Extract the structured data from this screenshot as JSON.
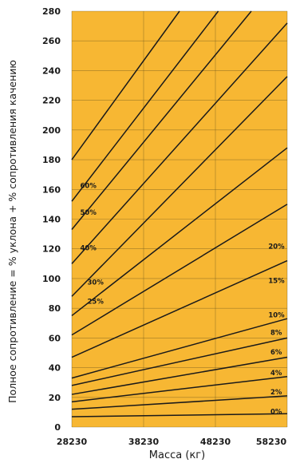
{
  "chart_data": {
    "type": "line",
    "title": "",
    "xlabel": "Масса (кг)",
    "ylabel": "Полное сопротивление = % уклона + % сопротивления качению",
    "x_ticks": [
      "28230",
      "38230",
      "48230",
      "58230"
    ],
    "y_ticks": [
      "0",
      "20",
      "40",
      "60",
      "80",
      "100",
      "120",
      "140",
      "160",
      "180",
      "200",
      "220",
      "240",
      "260",
      "280"
    ],
    "xlim": [
      28230,
      58230
    ],
    "ylim": [
      0,
      280
    ],
    "grid": true,
    "colors": {
      "plot_background": "#F7B733",
      "line": "#1a1a1a",
      "grid": "#5a4a1a"
    },
    "series": [
      {
        "name": "0%",
        "values": [
          {
            "x": 28230,
            "y": 7
          },
          {
            "x": 58230,
            "y": 9
          }
        ]
      },
      {
        "name": "2%",
        "values": [
          {
            "x": 28230,
            "y": 12
          },
          {
            "x": 58230,
            "y": 21
          }
        ]
      },
      {
        "name": "4%",
        "values": [
          {
            "x": 28230,
            "y": 17
          },
          {
            "x": 58230,
            "y": 34
          }
        ]
      },
      {
        "name": "6%",
        "values": [
          {
            "x": 28230,
            "y": 22
          },
          {
            "x": 58230,
            "y": 47
          }
        ]
      },
      {
        "name": "8%",
        "values": [
          {
            "x": 28230,
            "y": 28
          },
          {
            "x": 58230,
            "y": 60
          }
        ]
      },
      {
        "name": "10%",
        "values": [
          {
            "x": 28230,
            "y": 33
          },
          {
            "x": 58230,
            "y": 73
          }
        ]
      },
      {
        "name": "",
        "values": [
          {
            "x": 28230,
            "y": 47
          },
          {
            "x": 58230,
            "y": 112
          }
        ]
      },
      {
        "name": "15%",
        "values": [
          {
            "x": 28230,
            "y": 62
          },
          {
            "x": 58230,
            "y": 150
          }
        ]
      },
      {
        "name": "25%",
        "values": [
          {
            "x": 28230,
            "y": 75
          },
          {
            "x": 58230,
            "y": 188
          }
        ]
      },
      {
        "name": "20%",
        "values": [
          {
            "x": 28230,
            "y": 88
          },
          {
            "x": 58230,
            "y": 236
          }
        ]
      },
      {
        "name": "30%",
        "values": [
          {
            "x": 28230,
            "y": 110
          },
          {
            "x": 58230,
            "y": 272
          }
        ]
      },
      {
        "name": "40%",
        "values": [
          {
            "x": 28230,
            "y": 133
          },
          {
            "x": 53230,
            "y": 280
          }
        ]
      },
      {
        "name": "50%",
        "values": [
          {
            "x": 28230,
            "y": 152
          },
          {
            "x": 48630,
            "y": 280
          }
        ]
      },
      {
        "name": "60%",
        "values": [
          {
            "x": 28230,
            "y": 180
          },
          {
            "x": 43230,
            "y": 280
          }
        ]
      }
    ],
    "line_labels": [
      {
        "text": "60%",
        "x": 29400,
        "y": 161
      },
      {
        "text": "50%",
        "x": 29400,
        "y": 143
      },
      {
        "text": "40%",
        "x": 29400,
        "y": 119
      },
      {
        "text": "30%",
        "x": 30400,
        "y": 96
      },
      {
        "text": "25%",
        "x": 30400,
        "y": 83
      },
      {
        "text": "20%",
        "x": 55600,
        "y": 120
      },
      {
        "text": "15%",
        "x": 55600,
        "y": 97
      },
      {
        "text": "10%",
        "x": 55600,
        "y": 74
      },
      {
        "text": "8%",
        "x": 55900,
        "y": 62
      },
      {
        "text": "6%",
        "x": 55900,
        "y": 49
      },
      {
        "text": "4%",
        "x": 55900,
        "y": 35
      },
      {
        "text": "2%",
        "x": 55900,
        "y": 22
      },
      {
        "text": "0%",
        "x": 55900,
        "y": 9
      }
    ]
  }
}
